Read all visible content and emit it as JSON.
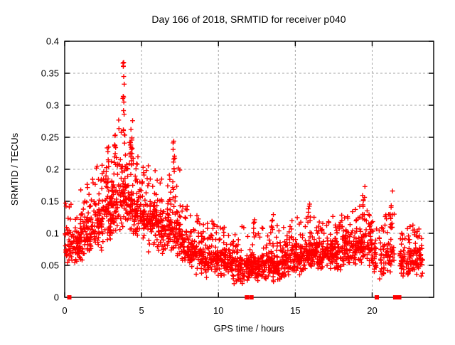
{
  "chart_data": {
    "type": "scatter",
    "title": "Day 166 of 2018, SRMTID for receiver p040",
    "xlabel": "GPS time / hours",
    "ylabel": "SRMTID / TECUs",
    "xlim": [
      0,
      24
    ],
    "ylim": [
      0,
      0.4
    ],
    "xticks": [
      0,
      5,
      10,
      15,
      20
    ],
    "xtick_labels": [
      "0",
      "5",
      "10",
      "15",
      "20"
    ],
    "yticks": [
      0,
      0.05,
      0.1,
      0.15,
      0.2,
      0.25,
      0.3,
      0.35,
      0.4
    ],
    "ytick_labels": [
      "0",
      "0.05",
      "0.1",
      "0.15",
      "0.2",
      "0.25",
      "0.3",
      "0.35",
      "0.4"
    ],
    "grid": true,
    "legend": "none",
    "marker": "plus",
    "point_color": "#ff0000",
    "grid_color": "#a6a6a6",
    "border_color": "#000000",
    "background_color": "#ffffff",
    "seed": 1234567,
    "zero_marker_shape": "filled-square",
    "zero_markers_x": [
      0.3,
      11.85,
      12.15,
      20.3,
      21.5,
      21.62,
      21.76
    ],
    "bins_columns": [
      "x_start",
      "x_end",
      "band_low",
      "band_high",
      "tail_max",
      "count"
    ],
    "density_bins": [
      [
        0.0,
        0.5,
        0.04,
        0.12,
        0.17,
        40
      ],
      [
        0.5,
        1.0,
        0.05,
        0.12,
        0.16,
        50
      ],
      [
        1.0,
        1.5,
        0.055,
        0.13,
        0.18,
        55
      ],
      [
        1.5,
        2.0,
        0.06,
        0.14,
        0.19,
        55
      ],
      [
        2.0,
        2.5,
        0.07,
        0.16,
        0.21,
        55
      ],
      [
        2.5,
        3.0,
        0.08,
        0.18,
        0.24,
        55
      ],
      [
        3.0,
        3.5,
        0.09,
        0.2,
        0.26,
        60
      ],
      [
        3.5,
        4.0,
        0.1,
        0.22,
        0.28,
        60
      ],
      [
        4.0,
        4.5,
        0.09,
        0.2,
        0.26,
        60
      ],
      [
        4.5,
        5.0,
        0.08,
        0.18,
        0.24,
        55
      ],
      [
        5.0,
        5.5,
        0.07,
        0.17,
        0.22,
        55
      ],
      [
        5.5,
        6.0,
        0.07,
        0.16,
        0.2,
        55
      ],
      [
        6.0,
        6.5,
        0.06,
        0.15,
        0.19,
        55
      ],
      [
        6.5,
        7.0,
        0.065,
        0.15,
        0.2,
        55
      ],
      [
        7.0,
        7.5,
        0.06,
        0.14,
        0.21,
        55
      ],
      [
        7.5,
        8.0,
        0.045,
        0.11,
        0.15,
        50
      ],
      [
        8.0,
        8.5,
        0.04,
        0.1,
        0.13,
        50
      ],
      [
        8.5,
        9.0,
        0.035,
        0.095,
        0.13,
        50
      ],
      [
        9.0,
        9.5,
        0.03,
        0.09,
        0.12,
        50
      ],
      [
        9.5,
        10.0,
        0.03,
        0.09,
        0.12,
        50
      ],
      [
        10.0,
        10.5,
        0.03,
        0.085,
        0.11,
        50
      ],
      [
        10.5,
        11.0,
        0.025,
        0.08,
        0.12,
        50
      ],
      [
        11.0,
        11.5,
        0.02,
        0.07,
        0.1,
        48
      ],
      [
        11.5,
        12.0,
        0.02,
        0.07,
        0.12,
        45
      ],
      [
        12.0,
        12.5,
        0.02,
        0.08,
        0.12,
        50
      ],
      [
        12.5,
        13.0,
        0.02,
        0.07,
        0.11,
        50
      ],
      [
        13.0,
        13.5,
        0.025,
        0.08,
        0.13,
        50
      ],
      [
        13.5,
        14.0,
        0.02,
        0.08,
        0.12,
        50
      ],
      [
        14.0,
        14.5,
        0.025,
        0.08,
        0.11,
        50
      ],
      [
        14.5,
        15.0,
        0.03,
        0.09,
        0.12,
        50
      ],
      [
        15.0,
        15.5,
        0.03,
        0.09,
        0.13,
        52
      ],
      [
        15.5,
        16.0,
        0.035,
        0.1,
        0.15,
        52
      ],
      [
        16.0,
        16.5,
        0.04,
        0.1,
        0.13,
        52
      ],
      [
        16.5,
        17.0,
        0.04,
        0.1,
        0.12,
        52
      ],
      [
        17.0,
        17.5,
        0.04,
        0.1,
        0.13,
        52
      ],
      [
        17.5,
        18.0,
        0.04,
        0.1,
        0.12,
        52
      ],
      [
        18.0,
        18.5,
        0.04,
        0.11,
        0.13,
        52
      ],
      [
        18.5,
        19.0,
        0.045,
        0.11,
        0.14,
        52
      ],
      [
        19.0,
        19.5,
        0.05,
        0.12,
        0.16,
        52
      ],
      [
        19.5,
        20.0,
        0.04,
        0.11,
        0.15,
        48
      ],
      [
        20.0,
        20.3,
        0.03,
        0.1,
        0.12,
        26
      ],
      [
        20.45,
        21.0,
        0.025,
        0.1,
        0.13,
        42
      ],
      [
        21.0,
        21.45,
        0.03,
        0.1,
        0.13,
        34
      ],
      [
        21.8,
        22.3,
        0.03,
        0.09,
        0.11,
        42
      ],
      [
        22.3,
        23.3,
        0.03,
        0.09,
        0.115,
        95
      ]
    ],
    "towers_columns": [
      "x_center",
      "y_low",
      "y_high",
      "count"
    ],
    "towers": [
      [
        3.85,
        0.25,
        0.372,
        16
      ],
      [
        4.35,
        0.2,
        0.295,
        12
      ],
      [
        7.1,
        0.13,
        0.25,
        12
      ],
      [
        19.45,
        0.12,
        0.178,
        10
      ],
      [
        21.25,
        0.1,
        0.167,
        8
      ],
      [
        12.3,
        0.09,
        0.148,
        6
      ],
      [
        13.5,
        0.09,
        0.135,
        5
      ],
      [
        15.9,
        0.1,
        0.15,
        5
      ],
      [
        2.75,
        0.17,
        0.235,
        8
      ],
      [
        3.3,
        0.19,
        0.255,
        8
      ]
    ]
  }
}
